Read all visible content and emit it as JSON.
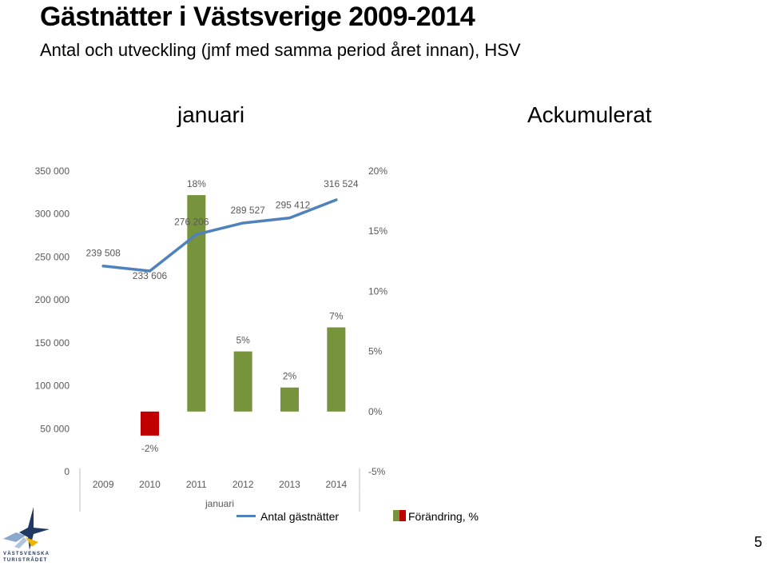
{
  "title": "Gästnätter i Västsverige 2009-2014",
  "subtitle": "Antal och utveckling (jmf med samma period året innan), HSV",
  "panel_labels": {
    "left": "januari",
    "right": "Ackumulerat"
  },
  "chart_data": {
    "type": "bar",
    "categories": [
      "2009",
      "2010",
      "2011",
      "2012",
      "2013",
      "2014"
    ],
    "xlabel": "januari",
    "series": [
      {
        "name": "Antal gästnätter",
        "type": "line",
        "axis": "left",
        "values": [
          239508,
          233606,
          276206,
          289527,
          295412,
          316524
        ],
        "labels": [
          "239 508",
          "233 606",
          "276 206",
          "289 527",
          "295 412",
          "316 524"
        ],
        "color": "#4f81bd"
      },
      {
        "name": "Förändring, %",
        "type": "bar",
        "axis": "right",
        "values": [
          null,
          -2,
          18,
          5,
          2,
          7
        ],
        "labels": [
          "",
          "-2%",
          "18%",
          "5%",
          "2%",
          "7%"
        ],
        "color_positive": "#77933c",
        "color_negative": "#c00000"
      }
    ],
    "ylim": [
      0,
      350000
    ],
    "yticks": [
      "0",
      "50 000",
      "100 000",
      "150 000",
      "200 000",
      "250 000",
      "300 000",
      "350 000"
    ],
    "ylim_right": [
      -5,
      20
    ],
    "yticks_right": [
      "-5%",
      "0%",
      "5%",
      "10%",
      "15%",
      "20%"
    ],
    "grid": false,
    "legend_position": "bottom"
  },
  "legend": {
    "line_label": "Antal gästnätter",
    "bar_label": "Förändring, %"
  },
  "logo": {
    "line1": "VÄSTSVENSKA",
    "line2": "TURISTRÅDET"
  },
  "page_number": "5"
}
